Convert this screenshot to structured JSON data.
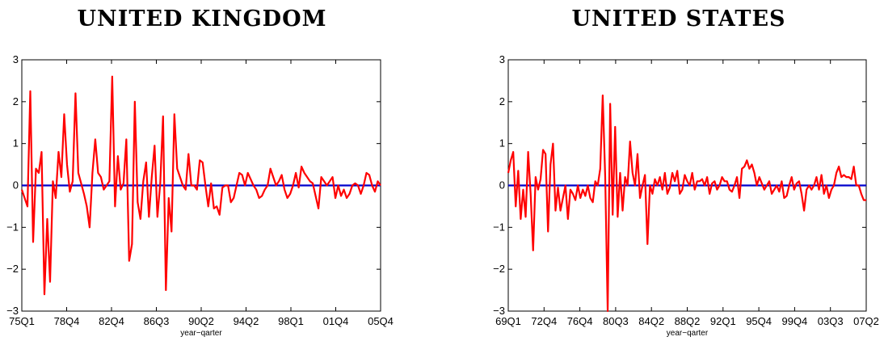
{
  "chart_data": [
    {
      "type": "line",
      "title": "UNITED KINGDOM",
      "xlabel": "year−qarter",
      "ylabel": "",
      "ylim": [
        -3,
        3
      ],
      "yticks": [
        "−3",
        "−2",
        "−1",
        "0",
        "1",
        "2",
        "3"
      ],
      "xtick_labels": [
        "75Q1",
        "78Q4",
        "82Q4",
        "86Q3",
        "90Q2",
        "94Q2",
        "98Q1",
        "01Q4",
        "05Q4"
      ],
      "grid": false,
      "legend": "none",
      "zero_line_color": "#0000cc",
      "series": [
        {
          "color": "#ff0000",
          "values": [
            -0.1,
            -0.3,
            -0.5,
            2.25,
            -1.35,
            0.4,
            0.3,
            0.8,
            -2.6,
            -0.8,
            -2.3,
            0.1,
            -0.3,
            0.8,
            0.2,
            1.7,
            0.5,
            -0.15,
            0.1,
            2.2,
            0.3,
            0.05,
            -0.2,
            -0.5,
            -1.0,
            0.3,
            1.1,
            0.3,
            0.2,
            -0.1,
            0.0,
            0.1,
            2.6,
            -0.5,
            0.7,
            -0.1,
            0.05,
            1.1,
            -1.8,
            -1.4,
            2.0,
            -0.4,
            -0.8,
            0.1,
            0.55,
            -0.75,
            0.2,
            0.95,
            -0.75,
            0.05,
            1.65,
            -2.5,
            -0.3,
            -1.1,
            1.7,
            0.4,
            0.2,
            0.0,
            -0.1,
            0.75,
            0.0,
            0.0,
            -0.1,
            0.6,
            0.55,
            0.0,
            -0.5,
            0.05,
            -0.55,
            -0.5,
            -0.7,
            -0.05,
            0.0,
            0.0,
            -0.4,
            -0.3,
            0.0,
            0.3,
            0.25,
            0.0,
            0.3,
            0.15,
            0.0,
            -0.1,
            -0.3,
            -0.25,
            -0.1,
            0.0,
            0.4,
            0.2,
            0.0,
            0.1,
            0.25,
            -0.1,
            -0.3,
            -0.2,
            0.0,
            0.3,
            -0.05,
            0.45,
            0.3,
            0.2,
            0.1,
            0.05,
            -0.25,
            -0.55,
            0.2,
            0.1,
            0.0,
            0.1,
            0.2,
            -0.3,
            0.0,
            -0.25,
            -0.1,
            -0.3,
            -0.2,
            0.0,
            0.05,
            0.0,
            -0.2,
            0.0,
            0.3,
            0.25,
            0.0,
            -0.15,
            0.1,
            0.0
          ]
        }
      ]
    },
    {
      "type": "line",
      "title": "UNITED STATES",
      "xlabel": "year−qarter",
      "ylabel": "",
      "ylim": [
        -3,
        3
      ],
      "yticks": [
        "−3",
        "−2",
        "−1",
        "0",
        "1",
        "2",
        "3"
      ],
      "xtick_labels": [
        "69Q1",
        "72Q4",
        "76Q4",
        "80Q3",
        "84Q2",
        "88Q2",
        "92Q1",
        "95Q4",
        "99Q4",
        "03Q3",
        "07Q2"
      ],
      "grid": false,
      "legend": "none",
      "zero_line_color": "#0000cc",
      "series": [
        {
          "color": "#ff0000",
          "values": [
            0.3,
            0.6,
            0.8,
            -0.5,
            0.35,
            -0.8,
            -0.1,
            -0.75,
            0.8,
            -0.2,
            -1.55,
            0.2,
            -0.1,
            0.15,
            0.85,
            0.75,
            -1.1,
            0.5,
            1.0,
            -0.6,
            -0.05,
            -0.6,
            -0.3,
            0.0,
            -0.8,
            -0.1,
            -0.2,
            -0.35,
            0.0,
            -0.3,
            -0.1,
            -0.25,
            0.0,
            -0.3,
            -0.4,
            0.1,
            0.0,
            0.4,
            2.15,
            0.2,
            -3.0,
            1.95,
            -0.7,
            1.4,
            -0.75,
            0.3,
            -0.6,
            0.2,
            0.0,
            1.05,
            0.3,
            0.0,
            0.75,
            -0.3,
            0.0,
            0.25,
            -1.4,
            0.0,
            -0.2,
            0.15,
            0.0,
            0.2,
            -0.1,
            0.3,
            -0.2,
            -0.05,
            0.3,
            0.1,
            0.35,
            -0.2,
            -0.1,
            0.25,
            0.1,
            0.0,
            0.3,
            -0.1,
            0.1,
            0.1,
            0.15,
            0.0,
            0.2,
            -0.2,
            0.05,
            0.1,
            -0.1,
            0.0,
            0.2,
            0.1,
            0.1,
            -0.1,
            -0.15,
            0.0,
            0.2,
            -0.3,
            0.4,
            0.45,
            0.6,
            0.4,
            0.5,
            0.3,
            0.0,
            0.2,
            0.05,
            -0.1,
            0.0,
            0.1,
            -0.2,
            -0.1,
            0.0,
            -0.15,
            0.1,
            -0.3,
            -0.25,
            0.0,
            0.2,
            -0.1,
            0.05,
            0.1,
            -0.2,
            -0.6,
            -0.1,
            0.0,
            -0.1,
            0.0,
            0.2,
            -0.1,
            0.25,
            -0.2,
            0.0,
            -0.3,
            -0.1,
            0.0,
            0.3,
            0.45,
            0.2,
            0.25,
            0.2,
            0.2,
            0.15,
            0.45,
            0.0,
            0.0,
            -0.2,
            -0.35,
            -0.35
          ]
        }
      ]
    }
  ]
}
